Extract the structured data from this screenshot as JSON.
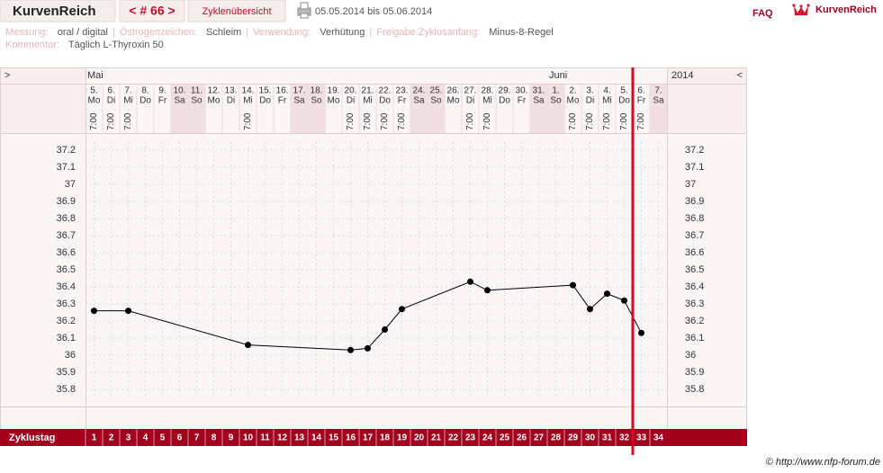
{
  "header": {
    "logo": "KurvenReich",
    "cycle_nav": "< # 66 >",
    "overview": "Zyklenübersicht",
    "date_range": "05.05.2014 bis 05.06.2014",
    "faq": "FAQ",
    "brand": "KurvenReich"
  },
  "info": {
    "rows": [
      [
        {
          "label": "Messung:",
          "value": "oral / digital"
        },
        {
          "label": "Östrogenzeichen:",
          "value": "Schleim"
        },
        {
          "label": "Verwendung:",
          "value": "Verhütung"
        },
        {
          "label": "Freigabe Zyklusanfang:",
          "value": "Minus-8-Regel"
        }
      ],
      [
        {
          "label": "Kommentar:",
          "value": "Täglich L-Thyroxin 50"
        }
      ]
    ]
  },
  "chart_data": {
    "type": "line",
    "nav_left": ">",
    "nav_right": "<",
    "year": "2014",
    "cycle_day_label": "Zyklustag",
    "months": [
      "Mai",
      null,
      null,
      null,
      null,
      null,
      null,
      null,
      null,
      null,
      null,
      null,
      null,
      null,
      null,
      null,
      null,
      null,
      null,
      null,
      null,
      null,
      null,
      null,
      null,
      null,
      null,
      "Juni",
      null,
      null,
      null,
      null,
      null,
      null
    ],
    "dates": [
      "5.",
      "6.",
      "7.",
      "8.",
      "9.",
      "10.",
      "11.",
      "12.",
      "13.",
      "14.",
      "15.",
      "16.",
      "17.",
      "18.",
      "19.",
      "20.",
      "21.",
      "22.",
      "23.",
      "24.",
      "25.",
      "26.",
      "27.",
      "28.",
      "29.",
      "30.",
      "31.",
      "1.",
      "2.",
      "3.",
      "4.",
      "5.",
      "6.",
      "7."
    ],
    "weekdays": [
      "Mo",
      "Di",
      "Mi",
      "Do",
      "Fr",
      "Sa",
      "So",
      "Mo",
      "Di",
      "Mi",
      "Do",
      "Fr",
      "Sa",
      "So",
      "Mo",
      "Di",
      "Mi",
      "Do",
      "Fr",
      "Sa",
      "So",
      "Mo",
      "Di",
      "Mi",
      "Do",
      "Fr",
      "Sa",
      "So",
      "Mo",
      "Di",
      "Mi",
      "Do",
      "Fr",
      "Sa"
    ],
    "times": [
      "7:00",
      "7:00",
      "7:00",
      null,
      null,
      null,
      null,
      null,
      null,
      "7:00",
      null,
      null,
      null,
      null,
      null,
      "7:00",
      "7:00",
      "7:00",
      "7:00",
      null,
      null,
      null,
      "7:00",
      "7:00",
      null,
      null,
      null,
      null,
      "7:00",
      "7:00",
      "7:00",
      "7:00",
      "7:00",
      null
    ],
    "cycle_days": [
      1,
      2,
      3,
      4,
      5,
      6,
      7,
      8,
      9,
      10,
      11,
      12,
      13,
      14,
      15,
      16,
      17,
      18,
      19,
      20,
      21,
      22,
      23,
      24,
      25,
      26,
      27,
      28,
      29,
      30,
      31,
      32,
      33,
      34
    ],
    "x": [
      1,
      3,
      10,
      16,
      17,
      18,
      19,
      23,
      24,
      29,
      30,
      31,
      32,
      33
    ],
    "values": [
      36.26,
      36.26,
      36.06,
      36.03,
      36.04,
      36.15,
      36.27,
      36.43,
      36.38,
      36.41,
      36.27,
      36.36,
      36.32,
      36.13
    ],
    "color": "#000000",
    "xlim": [
      0.5,
      34.5
    ],
    "ylim": [
      35.7,
      37.3
    ],
    "yticks": [
      35.8,
      35.9,
      36,
      36.1,
      36.2,
      36.3,
      36.4,
      36.5,
      36.6,
      36.7,
      36.8,
      36.9,
      37,
      37.1,
      37.2
    ],
    "grid": true,
    "current_day": 33
  },
  "footer": "© http://www.nfp-forum.de"
}
